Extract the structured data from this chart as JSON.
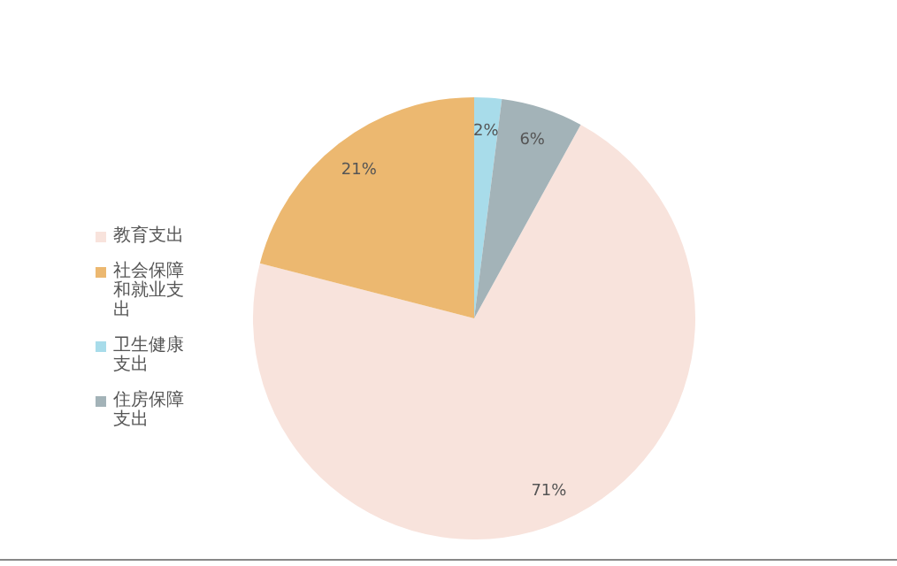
{
  "chart_data": {
    "type": "pie",
    "categories": [
      "教育支出",
      "社会保障和就业支出",
      "卫生健康支出",
      "住房保障支出"
    ],
    "values": [
      71,
      21,
      2,
      6
    ],
    "colors": [
      "#f8e3dc",
      "#ecb870",
      "#a8dcea",
      "#a3b3b8"
    ],
    "value_labels": [
      "71%",
      "21%",
      "2%",
      "6%"
    ],
    "legend": "left"
  }
}
